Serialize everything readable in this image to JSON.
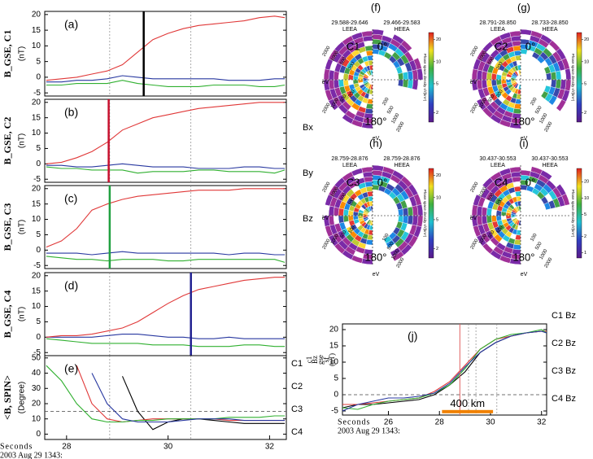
{
  "chart_data": [
    {
      "type": "line",
      "panel_label": "(a)",
      "ylabel": "B_GSE, C1",
      "yunit": "(nT)",
      "xlim": [
        27.57,
        32.33
      ],
      "ylim": [
        -6,
        21
      ],
      "yticks": [
        -5,
        0,
        5,
        10,
        15,
        20
      ],
      "reference_x": [
        28.85,
        30.45
      ],
      "marker_x": 29.52,
      "marker_color": "#000000",
      "legend": "external",
      "x": [
        27.6,
        27.9,
        28.2,
        28.5,
        28.8,
        29.1,
        29.4,
        29.7,
        30.0,
        30.3,
        30.6,
        30.9,
        31.2,
        31.5,
        31.8,
        32.1,
        32.3
      ],
      "series": [
        {
          "name": "Bx",
          "color": "#2838a0",
          "values": [
            -1.5,
            -1.5,
            -1,
            -1,
            -0.5,
            0.5,
            0,
            -0.5,
            -0.5,
            -0.5,
            -0.5,
            -0.5,
            -1,
            -1,
            -1,
            -0.5,
            -0.5
          ]
        },
        {
          "name": "By",
          "color": "#30b030",
          "values": [
            -2.5,
            -2.5,
            -2,
            -2,
            -2,
            -1,
            -2,
            -2.5,
            -3,
            -3,
            -3,
            -2.5,
            -2.5,
            -2.5,
            -3,
            -3,
            -2.5
          ]
        },
        {
          "name": "Bz",
          "color": "#e03838",
          "values": [
            -1,
            -0.5,
            0,
            1,
            2,
            4,
            8,
            12,
            14,
            15.5,
            16.5,
            17,
            17.5,
            18,
            19,
            19.5,
            19
          ]
        }
      ]
    },
    {
      "type": "line",
      "panel_label": "(b)",
      "ylabel": "B_GSE, C2",
      "yunit": "(nT)",
      "xlim": [
        27.57,
        32.33
      ],
      "ylim": [
        -6,
        21
      ],
      "yticks": [
        -5,
        0,
        5,
        10,
        15,
        20
      ],
      "reference_x": [
        28.85,
        30.45
      ],
      "marker_x": 28.83,
      "marker_color": "#c8102e",
      "x": [
        27.6,
        27.9,
        28.2,
        28.5,
        28.8,
        29.1,
        29.4,
        29.7,
        30.0,
        30.3,
        30.6,
        30.9,
        31.2,
        31.5,
        31.8,
        32.1,
        32.3
      ],
      "series": [
        {
          "color": "#2838a0",
          "values": [
            -0.5,
            -0.5,
            -1,
            -1,
            -0.5,
            0,
            -0.5,
            -1,
            -1,
            -1,
            -1.5,
            -1.5,
            -1.5,
            -1,
            -1,
            -1.5,
            -1.5
          ]
        },
        {
          "color": "#30b030",
          "values": [
            -1,
            -1.5,
            -1.5,
            -2,
            -2,
            -2,
            -3,
            -2.5,
            -2.5,
            -2.5,
            -2,
            -2,
            -2.5,
            -2.5,
            -2.5,
            -3,
            -2
          ]
        },
        {
          "color": "#e03838",
          "values": [
            0,
            0.5,
            2,
            4,
            7,
            11,
            13,
            15,
            16,
            17,
            18,
            18.5,
            19,
            19.5,
            20,
            20,
            20
          ]
        }
      ]
    },
    {
      "type": "line",
      "panel_label": "(c)",
      "ylabel": "B_GSE, C3",
      "yunit": "(nT)",
      "xlim": [
        27.57,
        32.33
      ],
      "ylim": [
        -6,
        21
      ],
      "yticks": [
        -5,
        0,
        5,
        10,
        15,
        20
      ],
      "reference_x": [
        28.85,
        30.45
      ],
      "marker_x": 28.85,
      "marker_color": "#20a040",
      "x": [
        27.6,
        27.9,
        28.2,
        28.5,
        28.8,
        29.1,
        29.4,
        29.7,
        30.0,
        30.3,
        30.6,
        30.9,
        31.2,
        31.5,
        31.8,
        32.1,
        32.3
      ],
      "series": [
        {
          "color": "#2838a0",
          "values": [
            -1,
            -1,
            -1,
            -1.5,
            -1,
            -0.5,
            -1,
            -1,
            -1,
            -1,
            -1,
            -1,
            -1.5,
            -1,
            -1,
            -1.5,
            -1.5
          ]
        },
        {
          "color": "#30b030",
          "values": [
            -2,
            -2.5,
            -3,
            -3,
            -3.5,
            -3,
            -3,
            -3,
            -3.5,
            -3.5,
            -3,
            -3,
            -3,
            -3,
            -3,
            -3,
            -4
          ]
        },
        {
          "color": "#e03838",
          "values": [
            1,
            3,
            7,
            13,
            15,
            16.5,
            17.5,
            18,
            18.5,
            19,
            19.5,
            19.5,
            19.5,
            20,
            20,
            20,
            20
          ]
        }
      ]
    },
    {
      "type": "line",
      "panel_label": "(d)",
      "ylabel": "B_GSE, C4",
      "yunit": "(nT)",
      "xlim": [
        27.57,
        32.33
      ],
      "ylim": [
        -6,
        21
      ],
      "yticks": [
        -5,
        0,
        5,
        10,
        15,
        20
      ],
      "reference_x": [
        28.85,
        30.45
      ],
      "marker_x": 30.45,
      "marker_color": "#202090",
      "x": [
        27.6,
        27.9,
        28.2,
        28.5,
        28.8,
        29.1,
        29.4,
        29.7,
        30.0,
        30.3,
        30.6,
        30.9,
        31.2,
        31.5,
        31.8,
        32.1,
        32.3
      ],
      "series": [
        {
          "color": "#2838a0",
          "values": [
            0,
            0,
            0,
            0,
            0.5,
            1,
            1,
            0.5,
            0,
            0,
            -0.5,
            -0.5,
            0,
            -0.5,
            -0.5,
            -0.5,
            -0.5
          ]
        },
        {
          "color": "#30b030",
          "values": [
            -0.5,
            -1,
            -1.5,
            -2,
            -2,
            -2,
            -2,
            -2.5,
            -2.5,
            -2.5,
            -3,
            -3,
            -3,
            -2.5,
            -2.5,
            -3,
            -3
          ]
        },
        {
          "color": "#e03838",
          "values": [
            0,
            0.5,
            0.5,
            1,
            2,
            3,
            5,
            8,
            11,
            13.5,
            15.5,
            16.5,
            17.5,
            18.5,
            19,
            19.5,
            19.5
          ]
        }
      ]
    },
    {
      "type": "line",
      "panel_label": "(e)",
      "ylabel": "<B, SPIN>",
      "yunit": "(Degree)",
      "xlim": [
        27.57,
        32.33
      ],
      "ylim": [
        -3.5,
        51.5
      ],
      "yticks": [
        0,
        10,
        20,
        30,
        40,
        50
      ],
      "xticks": [
        28,
        30,
        32
      ],
      "xlabel": "Seconds",
      "date_label": "2003 Aug 29 1343:",
      "reference_x": [
        28.85,
        30.45
      ],
      "reference_y": 15,
      "legend": "right",
      "x": [
        27.6,
        27.9,
        28.2,
        28.5,
        28.8,
        29.1,
        29.4,
        29.7,
        30.0,
        30.3,
        30.6,
        30.9,
        31.2,
        31.5,
        31.8,
        32.1,
        32.3
      ],
      "series": [
        {
          "name": "C1",
          "color": "#000000",
          "values": [
            null,
            null,
            null,
            null,
            null,
            38,
            15,
            3,
            8,
            10,
            10,
            9,
            8,
            7,
            7,
            7,
            7
          ]
        },
        {
          "name": "C2",
          "color": "#e03838",
          "values": [
            null,
            null,
            45,
            20,
            10,
            8,
            9,
            10,
            10,
            10,
            10,
            10,
            9,
            9,
            9,
            9,
            9
          ]
        },
        {
          "name": "C3",
          "color": "#30b030",
          "values": [
            45,
            35,
            20,
            10,
            8,
            8,
            9,
            9,
            10,
            10,
            10,
            10,
            11,
            11,
            11,
            12,
            12
          ]
        },
        {
          "name": "C4",
          "color": "#2838a0",
          "values": [
            null,
            null,
            null,
            40,
            20,
            10,
            8,
            8,
            8,
            9,
            10,
            10,
            10,
            9,
            9,
            9,
            9
          ]
        }
      ]
    },
    {
      "type": "polar",
      "panel_label": "(f)",
      "probe": "C1",
      "time_left": "29.588-29.646",
      "time_right": "29.466-29.583",
      "left_name": "LEEA",
      "right_name": "HEEA",
      "top_angle": "0°",
      "bottom_angle": "180°",
      "unit": "eV",
      "energy_ticks": [
        "2000",
        "1000",
        "500",
        "200"
      ],
      "colorbar_label": "Phase space density s³/(km⁶)",
      "clim": [
        1.5,
        25
      ],
      "colorbar_ticks": [
        2,
        5,
        10,
        20
      ]
    },
    {
      "type": "polar",
      "panel_label": "(g)",
      "probe": "C2",
      "time_left": "28.791-28.850",
      "time_right": "28.733-28.850",
      "left_name": "LEEA",
      "right_name": "HEEA",
      "top_angle": "0°",
      "bottom_angle": "180°",
      "unit": "eV",
      "energy_ticks": [
        "2000",
        "1000",
        "500",
        "200"
      ],
      "colorbar_label": "Phase space density s³/(km⁶)",
      "clim": [
        1.5,
        25
      ],
      "colorbar_ticks": [
        2,
        5,
        10,
        20
      ]
    },
    {
      "type": "polar",
      "panel_label": "(h)",
      "probe": "C3",
      "time_left": "28.759-28.876",
      "time_right": "28.759-28.876",
      "left_name": "LEEA",
      "right_name": "HEEA",
      "top_angle": "0°",
      "bottom_angle": "180°",
      "unit": "eV",
      "energy_ticks": [
        "2000",
        "1000",
        "500",
        "100"
      ],
      "colorbar_label": "Phase space density s³/(km⁶)",
      "clim": [
        1.5,
        25
      ],
      "colorbar_ticks": [
        2,
        5,
        10,
        20
      ]
    },
    {
      "type": "polar",
      "panel_label": "(i)",
      "probe": "C4",
      "time_left": "30.437-30.553",
      "time_right": "30.437-30.553",
      "left_name": "LEEA",
      "right_name": "HEEA",
      "top_angle": "0°",
      "bottom_angle": "180°",
      "unit": "eV",
      "energy_ticks": [
        "2000",
        "1000",
        "500",
        "100"
      ],
      "colorbar_label": "Phase space density s³/(km⁶)",
      "clim": [
        0.8,
        35
      ],
      "colorbar_ticks": [
        1,
        2,
        5,
        10,
        20
      ]
    },
    {
      "type": "line",
      "panel_label": "(j)",
      "ylabel": [
        "c1",
        "Bz",
        "gse",
        "sf",
        "(nT)"
      ],
      "xlim": [
        24.2,
        32.2
      ],
      "ylim": [
        -6.25,
        21.75
      ],
      "yticks": [
        -5,
        0,
        5,
        10,
        15,
        20
      ],
      "xticks": [
        26,
        28,
        30,
        32
      ],
      "xlabel": "Seconds",
      "date_label": "2003 Aug 29 1343:",
      "reference_x": [
        29.14,
        29.43,
        30.25
      ],
      "reference_y": 0,
      "marker_x": 28.8,
      "marker_color": "#e06060",
      "legend": "right",
      "scale_bar": {
        "label": "400 km",
        "x": [
          28.1,
          30.1
        ],
        "y": -5.2,
        "color": "#f08000"
      },
      "x": [
        24.2,
        24.8,
        25.4,
        26.0,
        26.6,
        27.2,
        27.8,
        28.4,
        29.0,
        29.6,
        30.2,
        30.8,
        31.4,
        32.0,
        32.2
      ],
      "series": [
        {
          "name": "C1 Bz",
          "color": "#000000",
          "values": [
            -4,
            -3,
            -3,
            -2.5,
            -2,
            -1.5,
            0,
            3,
            7,
            13,
            16,
            18,
            19,
            19.5,
            19
          ]
        },
        {
          "name": "C2 Bz",
          "color": "#e03838",
          "values": [
            -3,
            -3,
            -2.5,
            -2,
            -1.5,
            -1,
            1,
            4,
            9,
            14,
            17,
            18,
            19,
            19.5,
            19.5
          ]
        },
        {
          "name": "C3 Bz",
          "color": "#30b030",
          "values": [
            -4,
            -4.5,
            -3,
            -2,
            -1.5,
            -1,
            0.5,
            3,
            8,
            14,
            17,
            18.5,
            19,
            20,
            19
          ]
        },
        {
          "name": "C4 Bz",
          "color": "#2838a0",
          "values": [
            -5,
            -3,
            -2,
            -1,
            -1,
            -0.5,
            0.5,
            3.5,
            8.5,
            13,
            16,
            18,
            19,
            19.5,
            19
          ]
        }
      ]
    }
  ]
}
